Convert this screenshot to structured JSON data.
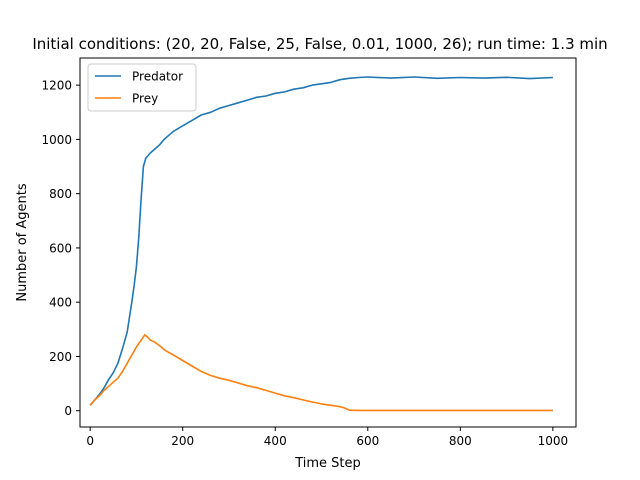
{
  "chart_data": {
    "type": "line",
    "title": "Initial conditions: (20, 20, False, 25, False, 0.01, 1000, 26); run time: 1.3 min",
    "xlabel": "Time Step",
    "ylabel": "Number of Agents",
    "xlim": [
      -22,
      1050
    ],
    "ylim": [
      -60,
      1300
    ],
    "xticks": [
      0,
      200,
      400,
      600,
      800,
      1000
    ],
    "yticks": [
      0,
      200,
      400,
      600,
      800,
      1000,
      1200
    ],
    "grid": false,
    "legend_position": "top-left",
    "series": [
      {
        "name": "Predator",
        "color": "#1f77b4",
        "x": [
          0,
          10,
          20,
          30,
          40,
          50,
          60,
          70,
          80,
          90,
          95,
          100,
          105,
          110,
          115,
          120,
          130,
          140,
          150,
          160,
          170,
          180,
          200,
          220,
          240,
          260,
          280,
          300,
          320,
          340,
          360,
          380,
          400,
          420,
          440,
          460,
          480,
          500,
          520,
          540,
          560,
          580,
          600,
          650,
          700,
          750,
          800,
          850,
          900,
          950,
          1000
        ],
        "y": [
          20,
          40,
          60,
          85,
          115,
          140,
          175,
          230,
          290,
          400,
          460,
          530,
          640,
          780,
          900,
          930,
          950,
          965,
          980,
          1000,
          1015,
          1030,
          1050,
          1070,
          1090,
          1100,
          1115,
          1125,
          1135,
          1145,
          1155,
          1160,
          1170,
          1175,
          1185,
          1190,
          1200,
          1205,
          1210,
          1220,
          1225,
          1228,
          1230,
          1226,
          1230,
          1225,
          1228,
          1226,
          1229,
          1224,
          1228
        ]
      },
      {
        "name": "Prey",
        "color": "#ff7f0e",
        "x": [
          0,
          10,
          20,
          30,
          40,
          50,
          60,
          70,
          80,
          90,
          100,
          110,
          118,
          125,
          130,
          140,
          150,
          160,
          170,
          180,
          200,
          220,
          240,
          260,
          280,
          300,
          320,
          340,
          360,
          380,
          400,
          420,
          440,
          460,
          480,
          500,
          520,
          540,
          550,
          560,
          580,
          600,
          700,
          800,
          900,
          1000
        ],
        "y": [
          20,
          40,
          55,
          75,
          90,
          105,
          120,
          145,
          175,
          205,
          235,
          260,
          280,
          270,
          260,
          252,
          240,
          225,
          215,
          205,
          185,
          165,
          145,
          130,
          120,
          112,
          102,
          92,
          85,
          75,
          65,
          55,
          48,
          40,
          32,
          25,
          20,
          15,
          10,
          2,
          1,
          1,
          1,
          1,
          1,
          1
        ]
      }
    ]
  }
}
